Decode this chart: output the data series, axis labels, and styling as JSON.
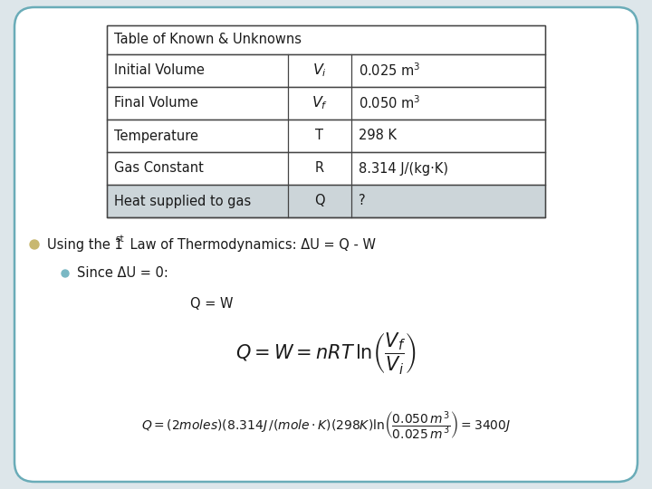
{
  "bg_color": "#dde6ea",
  "panel_color": "#ffffff",
  "table_header": "Table of Known & Unknowns",
  "table_rows": [
    [
      "Initial Volume",
      "V_i",
      "0.025 m³"
    ],
    [
      "Final Volume",
      "V_f",
      "0.050 m³"
    ],
    [
      "Temperature",
      "T",
      "298 K"
    ],
    [
      "Gas Constant",
      "R",
      "8.314 J/(kg·K)"
    ],
    [
      "Heat supplied to gas",
      "Q",
      "?"
    ]
  ],
  "table_last_row_color": "#ccd5d9",
  "font_color": "#1a1a1a",
  "table_font_size": 10.5,
  "body_font_size": 10.5,
  "bullet1_color": "#c8b870",
  "bullet2_color": "#7ab8c4"
}
